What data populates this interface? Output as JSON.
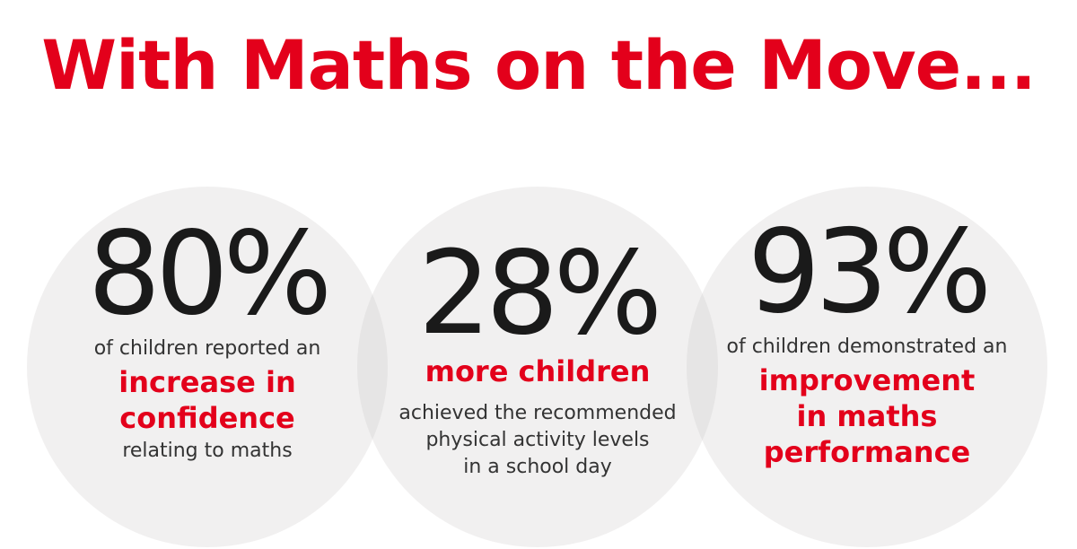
{
  "title": "With Maths on the Move...",
  "stats": [
    {
      "percent": "80%",
      "intro": "of children reported an",
      "highlight_line1": "increase in",
      "highlight_line2": "confidence",
      "outro": "relating to maths"
    },
    {
      "percent": "28%",
      "highlight": "more children",
      "line1": "achieved the recommended",
      "line2": "physical activity levels",
      "line3": "in a school day"
    },
    {
      "percent": "93%",
      "intro": "of children demonstrated an",
      "highlight_line1": "improvement",
      "highlight_line2": "in maths",
      "highlight_line3": "performance"
    }
  ],
  "colors": {
    "accent": "#e3001b",
    "number": "#1a1a1a",
    "text": "#333333",
    "circle": "#f1eeee"
  }
}
